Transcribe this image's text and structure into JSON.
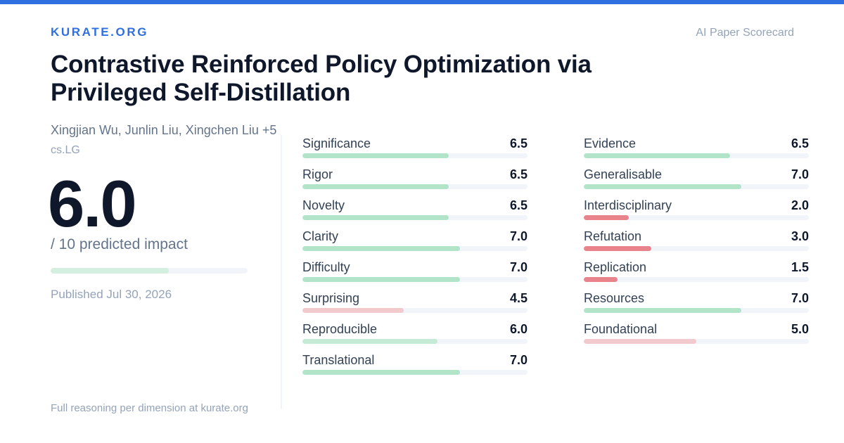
{
  "brand": "KURATE.ORG",
  "tagline": "AI Paper Scorecard",
  "paper": {
    "title": "Contrastive Reinforced Policy Optimization via Privileged Self-Distillation",
    "authors": "Xingjian Wu, Junlin Liu, Xingchen Liu +5",
    "category": "cs.LG",
    "published": "Published Jul 30, 2026"
  },
  "score": {
    "value": "6.0",
    "caption": "/ 10 predicted impact",
    "fraction": 0.6
  },
  "footer": "Full reasoning per dimension at kurate.org",
  "colors": {
    "accent": "#2f6fdf",
    "high": "#b1e4c8",
    "mid": "#c5ead5",
    "low": "#f2c9cc",
    "lowest": "#e8838b",
    "track": "#f1f5f9"
  },
  "dimensions_left": [
    {
      "label": "Significance",
      "value": "6.5",
      "score": 6.5
    },
    {
      "label": "Rigor",
      "value": "6.5",
      "score": 6.5
    },
    {
      "label": "Novelty",
      "value": "6.5",
      "score": 6.5
    },
    {
      "label": "Clarity",
      "value": "7.0",
      "score": 7.0
    },
    {
      "label": "Difficulty",
      "value": "7.0",
      "score": 7.0
    },
    {
      "label": "Surprising",
      "value": "4.5",
      "score": 4.5
    },
    {
      "label": "Reproducible",
      "value": "6.0",
      "score": 6.0
    },
    {
      "label": "Translational",
      "value": "7.0",
      "score": 7.0
    }
  ],
  "dimensions_right": [
    {
      "label": "Evidence",
      "value": "6.5",
      "score": 6.5
    },
    {
      "label": "Generalisable",
      "value": "7.0",
      "score": 7.0
    },
    {
      "label": "Interdisciplinary",
      "value": "2.0",
      "score": 2.0
    },
    {
      "label": "Refutation",
      "value": "3.0",
      "score": 3.0
    },
    {
      "label": "Replication",
      "value": "1.5",
      "score": 1.5
    },
    {
      "label": "Resources",
      "value": "7.0",
      "score": 7.0
    },
    {
      "label": "Foundational",
      "value": "5.0",
      "score": 5.0
    }
  ]
}
